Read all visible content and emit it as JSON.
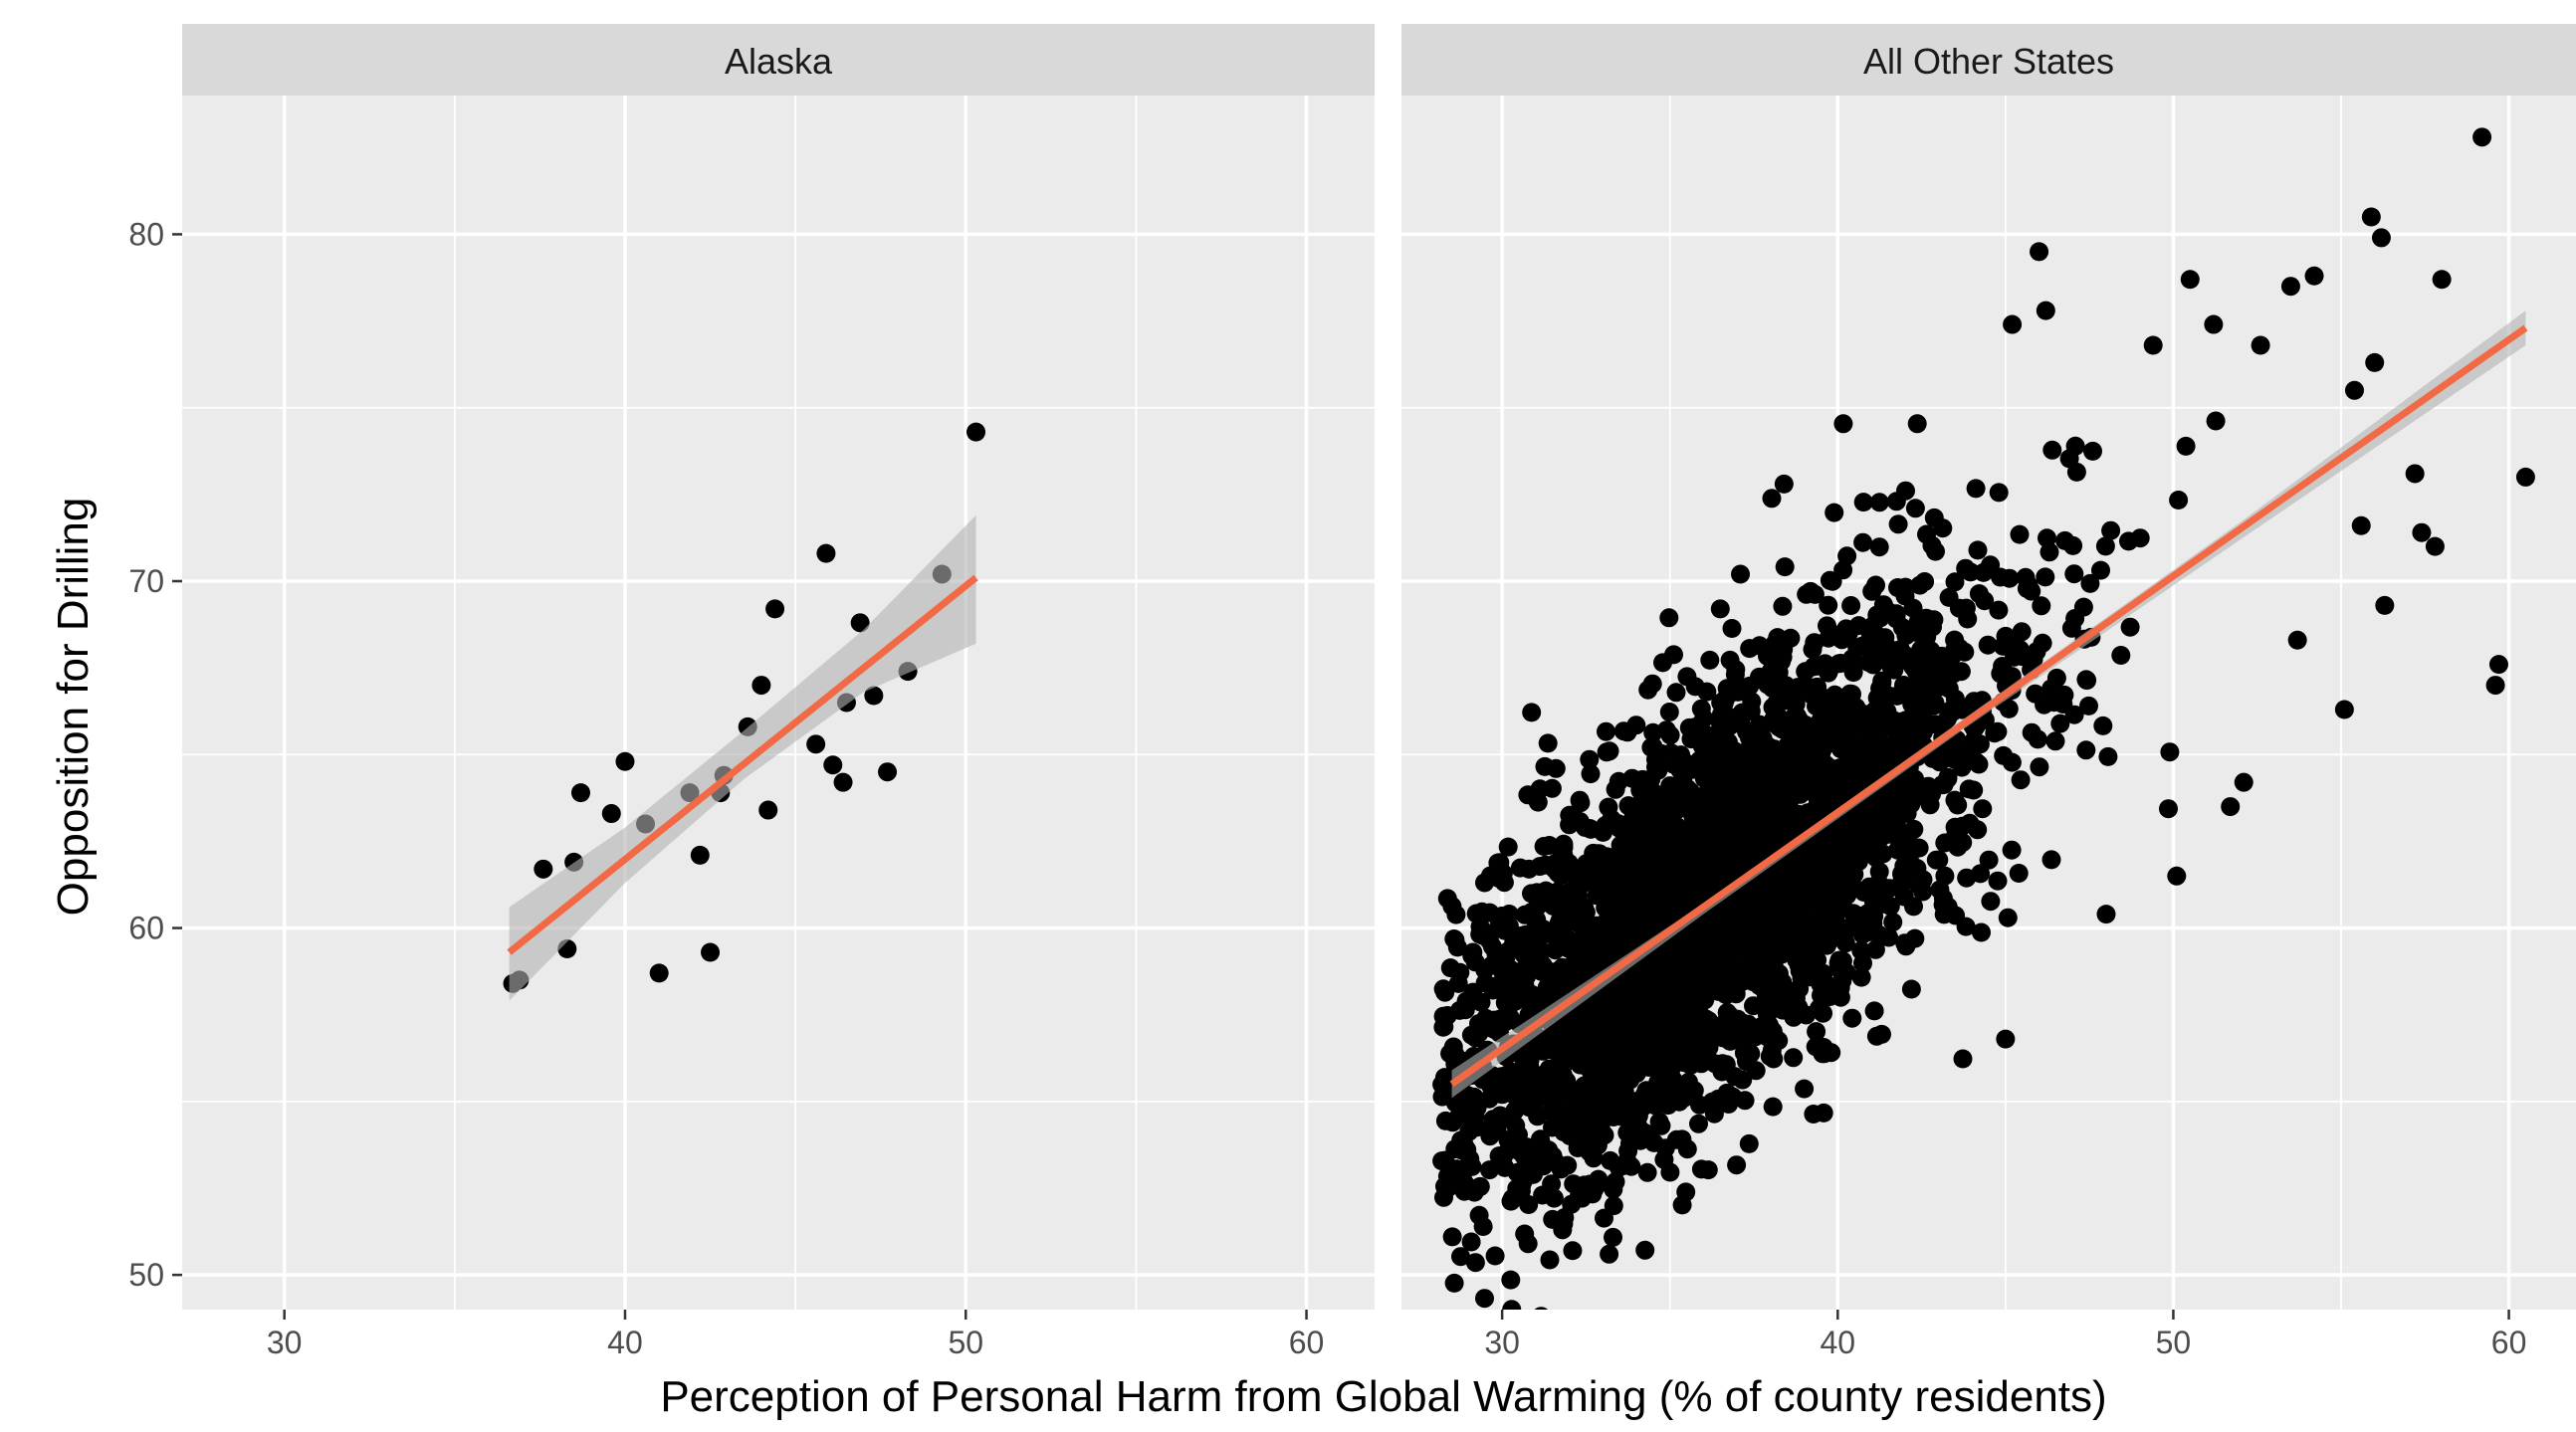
{
  "chart_data": {
    "type": "scatter",
    "facet_by": "region",
    "xlabel": "Perception of Personal Harm from Global Warming (% of county residents)",
    "ylabel": "Opposition for Drilling",
    "xlim": [
      27,
      62
    ],
    "ylim": [
      49,
      84
    ],
    "x_ticks": [
      30,
      40,
      50,
      60
    ],
    "y_ticks": [
      50,
      60,
      70,
      80
    ],
    "grid": true,
    "colors": {
      "panel": "#ebebeb",
      "strip": "#d9d9d9",
      "grid": "#ffffff",
      "points": "#000000",
      "fit": "#f26a45",
      "band": "#b3b3b3"
    },
    "panels": [
      {
        "strip_label": "Alaska",
        "fit": {
          "x": [
            36.6,
            50.3
          ],
          "y": [
            59.3,
            70.1
          ]
        },
        "band": {
          "x": [
            36.6,
            40,
            43.5,
            47,
            50.3
          ],
          "upper": [
            60.6,
            62.9,
            65.7,
            68.6,
            71.9
          ],
          "lower": [
            57.9,
            61.3,
            64.3,
            66.8,
            68.2
          ]
        },
        "points": [
          [
            36.7,
            58.4
          ],
          [
            36.9,
            58.5
          ],
          [
            37.6,
            61.7
          ],
          [
            38.3,
            59.4
          ],
          [
            38.5,
            61.9
          ],
          [
            38.7,
            63.9
          ],
          [
            39.6,
            63.3
          ],
          [
            40,
            64.8
          ],
          [
            40.6,
            63
          ],
          [
            41,
            58.7
          ],
          [
            41.9,
            63.9
          ],
          [
            42.2,
            62.1
          ],
          [
            42.5,
            59.3
          ],
          [
            42.8,
            63.9
          ],
          [
            42.9,
            64.4
          ],
          [
            43.6,
            65.8
          ],
          [
            44,
            67
          ],
          [
            44.2,
            63.4
          ],
          [
            44.4,
            69.2
          ],
          [
            45.6,
            65.3
          ],
          [
            45.9,
            70.8
          ],
          [
            46.1,
            64.7
          ],
          [
            46.4,
            64.2
          ],
          [
            46.5,
            66.5
          ],
          [
            46.9,
            68.8
          ],
          [
            47.3,
            66.7
          ],
          [
            47.7,
            64.5
          ],
          [
            48.3,
            67.4
          ],
          [
            49.3,
            70.2
          ],
          [
            50.3,
            74.3
          ]
        ]
      },
      {
        "strip_label": "All Other States",
        "fit": {
          "x": [
            28.5,
            60.5
          ],
          "y": [
            55.5,
            77.3
          ]
        },
        "band": {
          "x": [
            28.5,
            36,
            44,
            52,
            60.5
          ],
          "upper": [
            55.9,
            60.7,
            66.2,
            71.7,
            77.8
          ],
          "lower": [
            55.1,
            60.4,
            65.9,
            71.2,
            76.8
          ]
        },
        "cloud": {
          "count": 3000,
          "x_mean": 36.5,
          "x_sd": 4.2,
          "x_min": 28.2,
          "x_max": 61,
          "residual_sd": 2.9
        },
        "outliers": [
          [
            59.2,
            82.8
          ],
          [
            55.9,
            80.5
          ],
          [
            56.2,
            79.9
          ],
          [
            46,
            79.5
          ],
          [
            50.5,
            78.7
          ],
          [
            58,
            78.7
          ],
          [
            53.5,
            78.5
          ],
          [
            54.2,
            78.8
          ],
          [
            46.2,
            77.8
          ],
          [
            45.2,
            77.4
          ],
          [
            60.5,
            73
          ],
          [
            59.7,
            67.6
          ],
          [
            59.6,
            67
          ],
          [
            57.8,
            71
          ],
          [
            56.3,
            69.3
          ],
          [
            55.1,
            66.3
          ],
          [
            52.6,
            76.8
          ],
          [
            55.4,
            75.5
          ],
          [
            56,
            76.3
          ],
          [
            55.6,
            71.6
          ],
          [
            57.2,
            73.1
          ],
          [
            57.4,
            71.4
          ],
          [
            48,
            60.4
          ],
          [
            45,
            56.8
          ],
          [
            50.1,
            61.5
          ],
          [
            51.7,
            63.5
          ],
          [
            52.1,
            64.2
          ],
          [
            53.7,
            68.3
          ],
          [
            51.2,
            77.4
          ],
          [
            49.4,
            76.8
          ],
          [
            28.3,
            53.3
          ],
          [
            31.2,
            52.3
          ],
          [
            31.5,
            51.6
          ],
          [
            32.1,
            50.7
          ],
          [
            31.8,
            51.3
          ],
          [
            30.3,
            52.2
          ],
          [
            29.1,
            59.2
          ],
          [
            30.8,
            61.7
          ],
          [
            33.2,
            65.1
          ],
          [
            35,
            64.1
          ],
          [
            38.4,
            72.8
          ],
          [
            37.1,
            70.2
          ],
          [
            36.5,
            69.2
          ]
        ]
      }
    ]
  }
}
